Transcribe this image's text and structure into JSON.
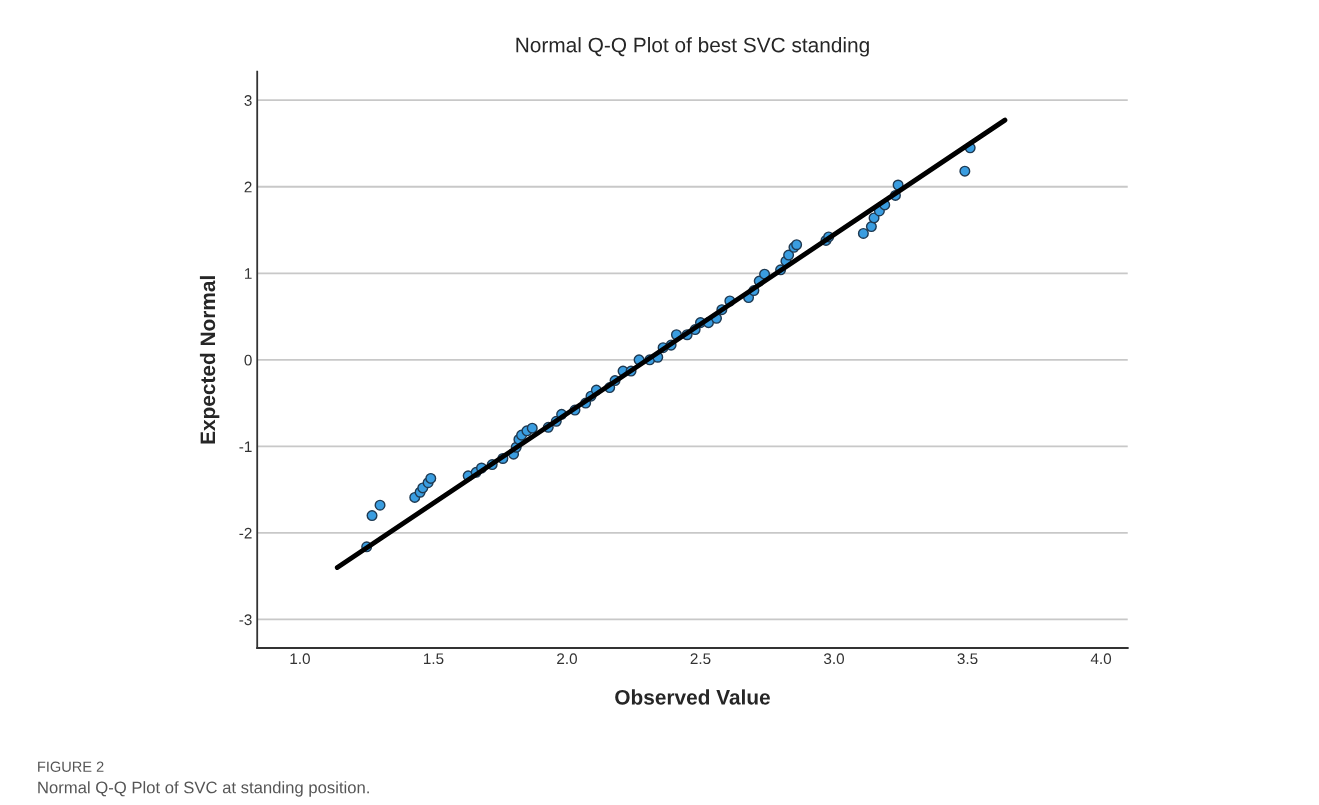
{
  "chart_data": {
    "type": "scatter",
    "title": "Normal Q-Q Plot of best SVC standing",
    "xlabel": "Observed Value",
    "ylabel": "Expected Normal",
    "annotations": [
      "FIGURE 2",
      "Normal Q-Q Plot of SVC at standing position."
    ],
    "xlim": [
      0.84,
      4.1
    ],
    "ylim": [
      -3.33,
      3.33
    ],
    "xticks": [
      {
        "value": 1,
        "label": "1.0"
      },
      {
        "value": 1.5,
        "label": "1.5"
      },
      {
        "value": 2,
        "label": "2.0"
      },
      {
        "value": 2.5,
        "label": "2.5"
      },
      {
        "value": 3,
        "label": "3.0"
      },
      {
        "value": 3.5,
        "label": "3.5"
      },
      {
        "value": 4,
        "label": "4.0"
      }
    ],
    "yticks": [
      -3,
      -2,
      -1,
      0,
      1,
      2,
      3
    ],
    "grid": "y",
    "series": [
      {
        "color": "#3a9de0",
        "marker": "circle",
        "x": [
          1.25,
          1.27,
          1.3,
          1.43,
          1.45,
          1.46,
          1.48,
          1.49,
          1.63,
          1.66,
          1.68,
          1.72,
          1.76,
          1.8,
          1.81,
          1.82,
          1.83,
          1.85,
          1.87,
          1.93,
          1.96,
          1.98,
          2.03,
          2.07,
          2.09,
          2.11,
          2.16,
          2.18,
          2.21,
          2.24,
          2.27,
          2.31,
          2.34,
          2.36,
          2.39,
          2.41,
          2.45,
          2.48,
          2.5,
          2.53,
          2.56,
          2.58,
          2.61,
          2.68,
          2.7,
          2.72,
          2.74,
          2.8,
          2.82,
          2.83,
          2.85,
          2.86,
          2.97,
          2.98,
          3.11,
          3.14,
          3.15,
          3.17,
          3.19,
          3.23,
          3.24,
          3.49,
          3.51
        ],
        "values": [
          -2.16,
          -1.8,
          -1.68,
          -1.59,
          -1.53,
          -1.48,
          -1.42,
          -1.37,
          -1.34,
          -1.3,
          -1.25,
          -1.21,
          -1.14,
          -1.09,
          -1.01,
          -0.92,
          -0.87,
          -0.82,
          -0.79,
          -0.78,
          -0.71,
          -0.63,
          -0.58,
          -0.5,
          -0.42,
          -0.35,
          -0.32,
          -0.24,
          -0.13,
          -0.13,
          0.0,
          0.0,
          0.03,
          0.14,
          0.17,
          0.29,
          0.29,
          0.35,
          0.43,
          0.43,
          0.48,
          0.58,
          0.68,
          0.72,
          0.8,
          0.91,
          0.99,
          1.04,
          1.14,
          1.21,
          1.3,
          1.33,
          1.38,
          1.42,
          1.46,
          1.54,
          1.64,
          1.72,
          1.79,
          1.9,
          2.02,
          2.18,
          2.45
        ]
      },
      {
        "type": "line",
        "color": "#000000",
        "x": [
          1.14,
          3.64
        ],
        "values": [
          -2.4,
          2.77
        ],
        "line_style": "solid"
      }
    ]
  }
}
